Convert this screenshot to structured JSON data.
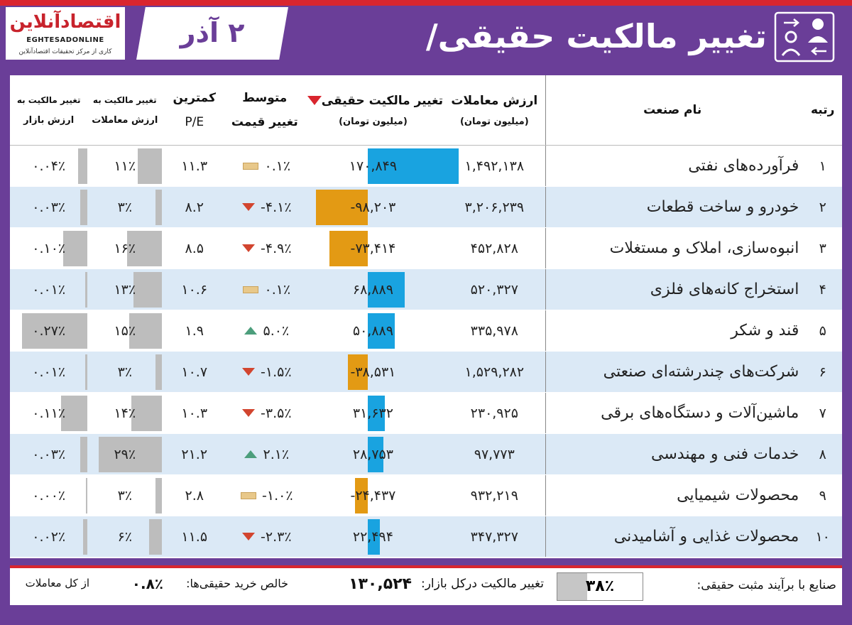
{
  "logo": {
    "title": "اقتصادآنلاین",
    "latin": "EGHTESADONLINE",
    "tagline": "کاری از مرکز تحقیقات اقتصادآنلاین"
  },
  "date": "۲ آذر",
  "title": "تغییر مالکیت حقیقی/حقوقی",
  "icon": "people-exchange-icon",
  "headers": {
    "rank": "رتبه",
    "industry": "نام صنعت",
    "value_main": "ارزش معاملات",
    "value_sub": "(میلیون تومان)",
    "real_main": "تغییر مالکیت حقیقی",
    "real_sub": "(میلیون تومان)",
    "avg_main": "متوسط",
    "avg_sub": "تغییر قیمت",
    "pe_main": "کمترین",
    "pe_sub": "P/E",
    "tt_main": "تغییر مالکیت به",
    "tt_sub": "ارزش معاملات",
    "mc_main": "تغییر مالکیت به",
    "mc_sub": "ارزش بازار"
  },
  "rows": [
    {
      "rank": "۱",
      "industry": "فرآورده‌های نفتی",
      "value": "۱,۴۹۲,۱۳۸",
      "real": "۱۷۰,۸۴۹",
      "real_num": 170849,
      "avg": "۰.۱٪",
      "trend": "flat",
      "pe": "۱۱.۳",
      "tt": "۱۱٪",
      "tt_num": 11,
      "mc": "۰.۰۴٪",
      "mc_num": 0.04
    },
    {
      "rank": "۲",
      "industry": "خودرو و ساخت قطعات",
      "value": "۳,۲۰۶,۲۳۹",
      "real": "-۹۸,۲۰۳",
      "real_num": -98203,
      "avg": "-۴.۱٪",
      "trend": "down",
      "pe": "۸.۲",
      "tt": "۳٪",
      "tt_num": 3,
      "mc": "۰.۰۳٪",
      "mc_num": 0.03
    },
    {
      "rank": "۳",
      "industry": "انبوه‌سازی، املاک و مستغلات",
      "value": "۴۵۲,۸۲۸",
      "real": "-۷۳,۴۱۴",
      "real_num": -73414,
      "avg": "-۴.۹٪",
      "trend": "down",
      "pe": "۸.۵",
      "tt": "۱۶٪",
      "tt_num": 16,
      "mc": "۰.۱۰٪",
      "mc_num": 0.1
    },
    {
      "rank": "۴",
      "industry": "استخراج کانه‌های فلزی",
      "value": "۵۲۰,۳۲۷",
      "real": "۶۸,۸۸۹",
      "real_num": 68889,
      "avg": "۰.۱٪",
      "trend": "flat",
      "pe": "۱۰.۶",
      "tt": "۱۳٪",
      "tt_num": 13,
      "mc": "۰.۰۱٪",
      "mc_num": 0.01
    },
    {
      "rank": "۵",
      "industry": "قند و شکر",
      "value": "۳۳۵,۹۷۸",
      "real": "۵۰,۸۸۹",
      "real_num": 50889,
      "avg": "۵.۰٪",
      "trend": "up",
      "pe": "۱.۹",
      "tt": "۱۵٪",
      "tt_num": 15,
      "mc": "۰.۲۷٪",
      "mc_num": 0.27
    },
    {
      "rank": "۶",
      "industry": "شرکت‌های چندرشته‌ای صنعتی",
      "value": "۱,۵۲۹,۲۸۲",
      "real": "-۳۸,۵۳۱",
      "real_num": -38531,
      "avg": "-۱.۵٪",
      "trend": "down",
      "pe": "۱۰.۷",
      "tt": "۳٪",
      "tt_num": 3,
      "mc": "۰.۰۱٪",
      "mc_num": 0.01
    },
    {
      "rank": "۷",
      "industry": "ماشین‌آلات و دستگاه‌های برقی",
      "value": "۲۳۰,۹۲۵",
      "real": "۳۱,۶۳۲",
      "real_num": 31632,
      "avg": "-۳.۵٪",
      "trend": "down",
      "pe": "۱۰.۳",
      "tt": "۱۴٪",
      "tt_num": 14,
      "mc": "۰.۱۱٪",
      "mc_num": 0.11
    },
    {
      "rank": "۸",
      "industry": "خدمات فنی و مهندسی",
      "value": "۹۷,۷۷۳",
      "real": "۲۸,۷۵۳",
      "real_num": 28753,
      "avg": "۲.۱٪",
      "trend": "up",
      "pe": "۲۱.۲",
      "tt": "۲۹٪",
      "tt_num": 29,
      "mc": "۰.۰۳٪",
      "mc_num": 0.03
    },
    {
      "rank": "۹",
      "industry": "محصولات شیمیایی",
      "value": "۹۳۲,۲۱۹",
      "real": "-۲۴,۴۳۷",
      "real_num": -24437,
      "avg": "-۱.۰٪",
      "trend": "flat",
      "pe": "۲.۸",
      "tt": "۳٪",
      "tt_num": 3,
      "mc": "۰.۰۰٪",
      "mc_num": 0.0
    },
    {
      "rank": "۱۰",
      "industry": "محصولات غذایی و آشامیدنی",
      "value": "۳۴۷,۳۲۷",
      "real": "۲۲,۴۹۴",
      "real_num": 22494,
      "avg": "-۲.۳٪",
      "trend": "down",
      "pe": "۱۱.۵",
      "tt": "۶٪",
      "tt_num": 6,
      "mc": "۰.۰۲٪",
      "mc_num": 0.02
    }
  ],
  "footer": {
    "positive_label": "صنایع با برآیند مثبت حقیقی:",
    "positive_value": "۳۸٪",
    "market_label": "تغییر مالکیت درکل بازار:",
    "market_value": "۱۳۰,۵۲۴",
    "net_label": "خالص خرید حقیقی‌ها:",
    "net_value": "۰.۸٪",
    "net_suffix": "از کل معاملات"
  },
  "colors": {
    "accent": "#6a3e98",
    "red": "#d9252e",
    "blue_bar": "#19a3e0",
    "orange_bar": "#e39a14",
    "gray_bar": "#bdbdbd",
    "alt_row": "#dbe9f6"
  }
}
